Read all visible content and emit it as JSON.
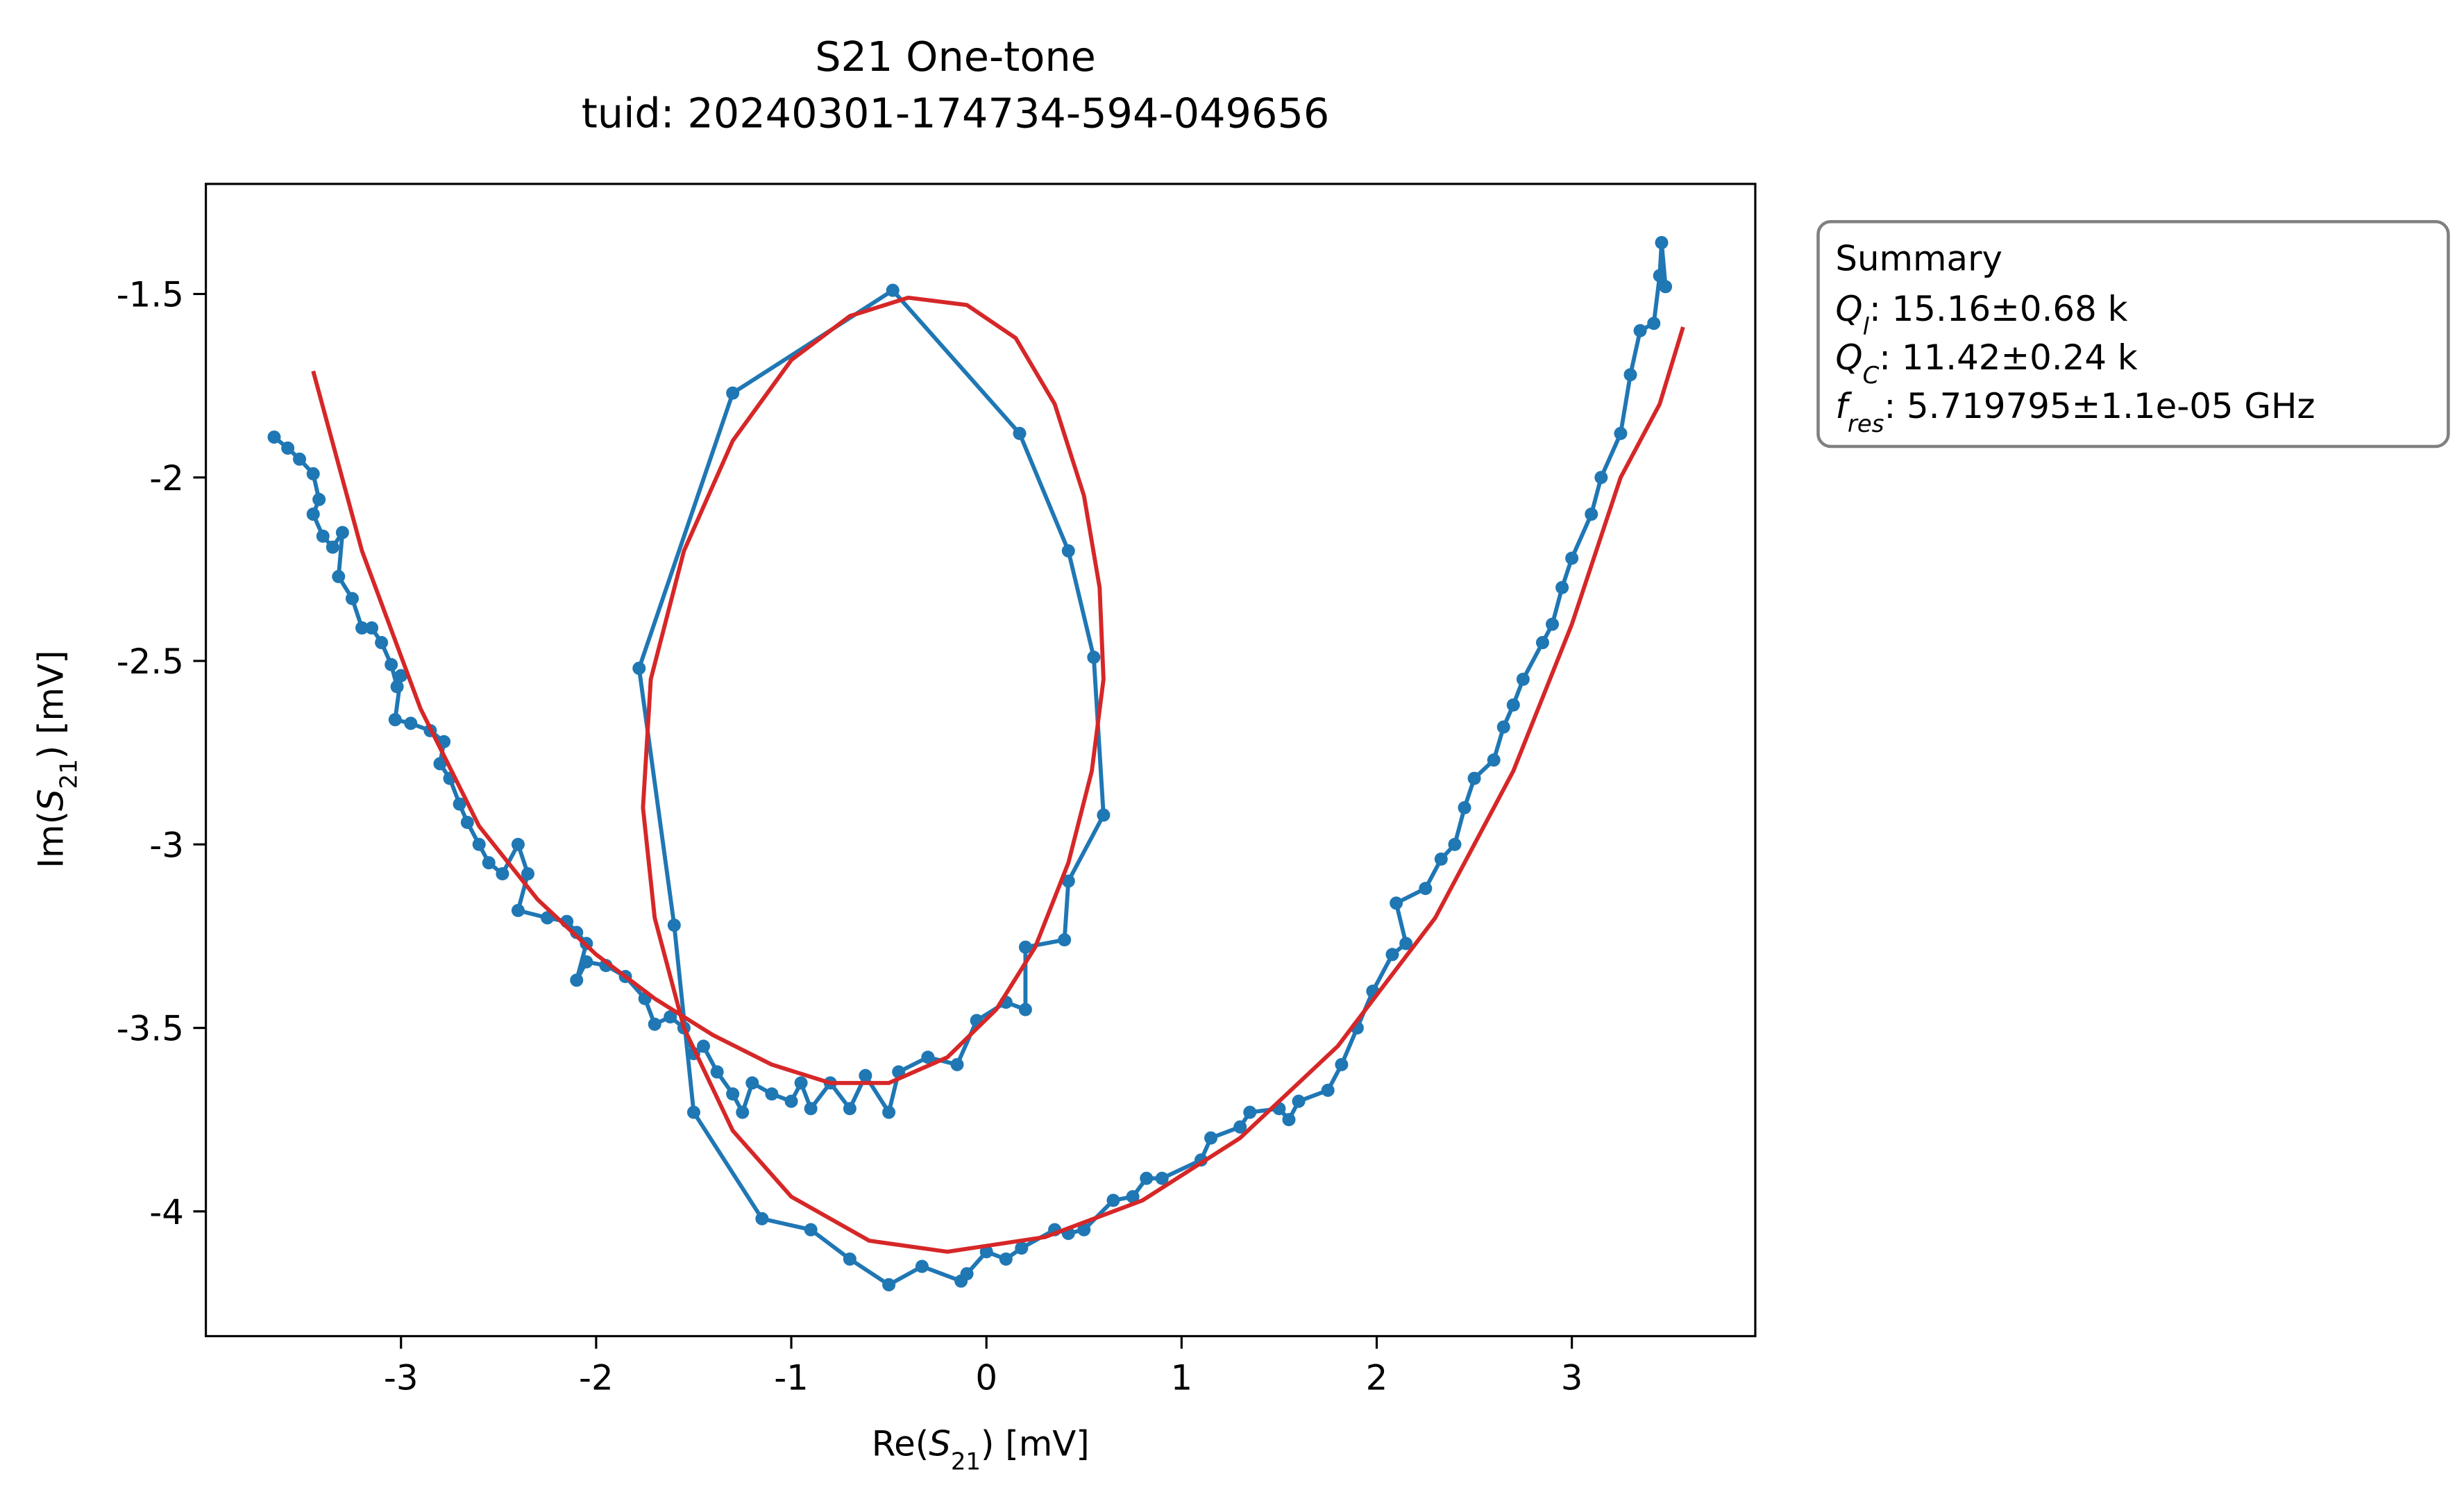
{
  "chart_data": {
    "type": "line",
    "title": "S21 One-tone",
    "subtitle": "tuid: 20240301-174734-594-049656",
    "x_label": {
      "prefix": "Re(",
      "symbol": "S",
      "subscript": "21",
      "suffix": ") [mV]"
    },
    "y_label": {
      "prefix": "Im(",
      "symbol": "S",
      "subscript": "21",
      "suffix": ") [mV]"
    },
    "xlim": [
      -4.0,
      3.94
    ],
    "ylim": [
      -4.34,
      -1.2
    ],
    "xticks": [
      -3,
      -2,
      -1,
      0,
      1,
      2,
      3
    ],
    "yticks": [
      -1.5,
      -2,
      -2.5,
      -3,
      -3.5,
      -4
    ],
    "series": [
      {
        "color": "#1f77b4",
        "marker": true,
        "x": [
          -3.65,
          -3.58,
          -3.52,
          -3.45,
          -3.42,
          -3.45,
          -3.4,
          -3.35,
          -3.3,
          -3.32,
          -3.25,
          -3.2,
          -3.15,
          -3.1,
          -3.05,
          -3.02,
          -3.0,
          -3.03,
          -2.95,
          -2.85,
          -2.78,
          -2.8,
          -2.75,
          -2.7,
          -2.66,
          -2.6,
          -2.55,
          -2.48,
          -2.4,
          -2.35,
          -2.4,
          -2.25,
          -2.15,
          -2.1,
          -2.05,
          -2.1,
          -2.05,
          -1.95,
          -1.85,
          -1.75,
          -1.7,
          -1.62,
          -1.55,
          -1.5,
          -1.45,
          -1.38,
          -1.3,
          -1.25,
          -1.2,
          -1.1,
          -1.0,
          -0.95,
          -0.9,
          -0.8,
          -0.7,
          -0.62,
          -0.5,
          -0.45,
          -0.3,
          -0.15,
          -0.05,
          0.1,
          0.2,
          0.2,
          0.4,
          0.42,
          0.6,
          0.55,
          0.42,
          0.17,
          -0.48,
          -1.3,
          -1.78,
          -1.6,
          -1.5,
          -1.15,
          -0.9,
          -0.7,
          -0.5,
          -0.33,
          -0.13,
          -0.1,
          0.0,
          0.1,
          0.18,
          0.35,
          0.42,
          0.5,
          0.65,
          0.75,
          0.82,
          0.9,
          1.1,
          1.15,
          1.3,
          1.35,
          1.5,
          1.55,
          1.6,
          1.75,
          1.82,
          1.9,
          1.98,
          2.08,
          2.15,
          2.1,
          2.25,
          2.33,
          2.4,
          2.45,
          2.5,
          2.6,
          2.65,
          2.7,
          2.75,
          2.85,
          2.9,
          2.95,
          3.0,
          3.1,
          3.15,
          3.25,
          3.3,
          3.35,
          3.42,
          3.45,
          3.46,
          3.48
        ],
        "y": [
          -1.89,
          -1.92,
          -1.95,
          -1.99,
          -2.06,
          -2.1,
          -2.16,
          -2.19,
          -2.15,
          -2.27,
          -2.33,
          -2.41,
          -2.41,
          -2.45,
          -2.51,
          -2.57,
          -2.54,
          -2.66,
          -2.67,
          -2.69,
          -2.72,
          -2.78,
          -2.82,
          -2.89,
          -2.94,
          -3.0,
          -3.05,
          -3.08,
          -3.0,
          -3.08,
          -3.18,
          -3.2,
          -3.21,
          -3.24,
          -3.27,
          -3.37,
          -3.32,
          -3.33,
          -3.36,
          -3.42,
          -3.49,
          -3.47,
          -3.5,
          -3.57,
          -3.55,
          -3.62,
          -3.68,
          -3.73,
          -3.65,
          -3.68,
          -3.7,
          -3.65,
          -3.72,
          -3.65,
          -3.72,
          -3.63,
          -3.73,
          -3.62,
          -3.58,
          -3.6,
          -3.48,
          -3.43,
          -3.45,
          -3.28,
          -3.26,
          -3.1,
          -2.92,
          -2.49,
          -2.2,
          -1.88,
          -1.49,
          -1.77,
          -2.52,
          -3.22,
          -3.73,
          -4.02,
          -4.05,
          -4.13,
          -4.2,
          -4.15,
          -4.19,
          -4.17,
          -4.11,
          -4.13,
          -4.1,
          -4.05,
          -4.06,
          -4.05,
          -3.97,
          -3.96,
          -3.91,
          -3.91,
          -3.86,
          -3.8,
          -3.77,
          -3.73,
          -3.72,
          -3.75,
          -3.7,
          -3.67,
          -3.6,
          -3.5,
          -3.4,
          -3.3,
          -3.27,
          -3.16,
          -3.12,
          -3.04,
          -3.0,
          -2.9,
          -2.82,
          -2.77,
          -2.68,
          -2.62,
          -2.55,
          -2.45,
          -2.4,
          -2.3,
          -2.22,
          -2.1,
          -2.0,
          -1.88,
          -1.72,
          -1.6,
          -1.58,
          -1.45,
          -1.36,
          -1.48
        ]
      },
      {
        "color": "#d62728",
        "marker": false,
        "x": [
          -3.45,
          -3.2,
          -2.9,
          -2.6,
          -2.3,
          -2.0,
          -1.7,
          -1.4,
          -1.1,
          -0.8,
          -0.5,
          -0.2,
          0.05,
          0.25,
          0.42,
          0.54,
          0.6,
          0.58,
          0.5,
          0.35,
          0.15,
          -0.1,
          -0.4,
          -0.7,
          -1.0,
          -1.3,
          -1.55,
          -1.72,
          -1.76,
          -1.7,
          -1.55,
          -1.3,
          -1.0,
          -0.6,
          -0.2,
          0.3,
          0.8,
          1.3,
          1.8,
          2.3,
          2.7,
          3.0,
          3.25,
          3.45,
          3.57
        ],
        "y": [
          -1.71,
          -2.2,
          -2.63,
          -2.95,
          -3.15,
          -3.3,
          -3.42,
          -3.52,
          -3.6,
          -3.65,
          -3.65,
          -3.58,
          -3.45,
          -3.28,
          -3.05,
          -2.8,
          -2.55,
          -2.3,
          -2.05,
          -1.8,
          -1.62,
          -1.53,
          -1.51,
          -1.56,
          -1.68,
          -1.9,
          -2.2,
          -2.55,
          -2.9,
          -3.2,
          -3.5,
          -3.78,
          -3.96,
          -4.08,
          -4.11,
          -4.07,
          -3.97,
          -3.8,
          -3.55,
          -3.2,
          -2.8,
          -2.4,
          -2.0,
          -1.8,
          -1.59
        ]
      }
    ],
    "summary": {
      "heading": "Summary",
      "lines": [
        {
          "symbol": "Q",
          "subscript": "l",
          "text": ": 15.16±0.68 k"
        },
        {
          "symbol": "Q",
          "subscript": "C",
          "text": ": 11.42±0.24 k"
        },
        {
          "symbol": "f",
          "subscript": "res",
          "text": ": 5.719795±1.1e-05 GHz"
        }
      ]
    }
  }
}
